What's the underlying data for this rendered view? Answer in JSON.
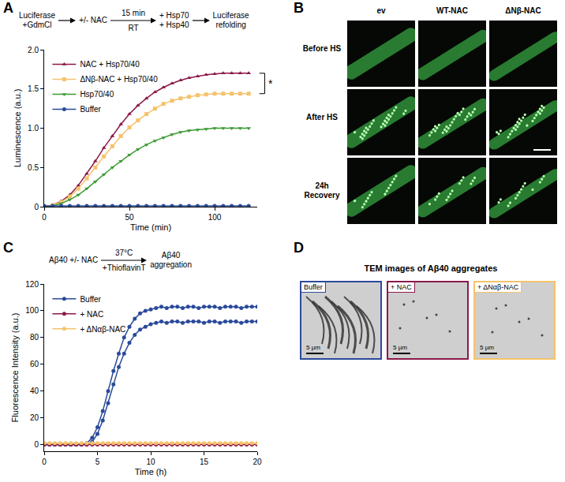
{
  "chart_data": [
    {
      "panel_label": "A",
      "type": "line",
      "scheme": {
        "nodes": [
          [
            "Luciferase",
            "+GdmCl"
          ],
          [
            "+/- NAC"
          ],
          [
            "+ Hsp70",
            "+ Hsp40"
          ],
          [
            "Luciferase",
            "refolding"
          ]
        ],
        "arrows": [
          null,
          {
            "above": "15 min",
            "below": "RT"
          },
          null
        ]
      },
      "x_label": "Time (min)",
      "y_label": "Luminescence (a.u.)",
      "x": [
        0,
        5,
        10,
        15,
        20,
        25,
        30,
        35,
        40,
        45,
        50,
        55,
        60,
        65,
        70,
        75,
        80,
        85,
        90,
        95,
        100,
        105,
        110,
        115,
        120
      ],
      "series": [
        {
          "name": "NAC + Hsp70/40",
          "color": "#8b1a4a",
          "marker": "triangle-up",
          "values": [
            0,
            0.02,
            0.07,
            0.15,
            0.27,
            0.42,
            0.58,
            0.75,
            0.9,
            1.05,
            1.18,
            1.29,
            1.38,
            1.46,
            1.52,
            1.57,
            1.61,
            1.64,
            1.66,
            1.68,
            1.69,
            1.7,
            1.7,
            1.7,
            1.7
          ]
        },
        {
          "name": "ΔNβ-NAC + Hsp70/40",
          "color": "#f5c26b",
          "marker": "square",
          "values": [
            0,
            0.02,
            0.06,
            0.13,
            0.23,
            0.36,
            0.5,
            0.64,
            0.77,
            0.9,
            1.01,
            1.1,
            1.18,
            1.25,
            1.31,
            1.35,
            1.38,
            1.4,
            1.42,
            1.43,
            1.44,
            1.44,
            1.44,
            1.44,
            1.44
          ]
        },
        {
          "name": "Hsp70/40",
          "color": "#3d9b35",
          "marker": "triangle-down",
          "values": [
            0,
            0.01,
            0.04,
            0.09,
            0.15,
            0.23,
            0.32,
            0.41,
            0.5,
            0.58,
            0.66,
            0.73,
            0.79,
            0.84,
            0.88,
            0.92,
            0.95,
            0.97,
            0.98,
            0.99,
            1.0,
            1.0,
            1.0,
            1.0,
            1.0
          ]
        },
        {
          "name": "Buffer",
          "color": "#2b4a9b",
          "marker": "circle",
          "values": [
            0.01,
            0.01,
            0.01,
            0.01,
            0.01,
            0.01,
            0.01,
            0.01,
            0.01,
            0.01,
            0.01,
            0.01,
            0.01,
            0.01,
            0.01,
            0.01,
            0.01,
            0.01,
            0.01,
            0.01,
            0.01,
            0.01,
            0.01,
            0.01,
            0.01
          ]
        }
      ],
      "xlim": [
        0,
        125
      ],
      "xticks": [
        0,
        50,
        100
      ],
      "ylim": [
        0,
        2.0
      ],
      "yticks": [
        0,
        0.5,
        {
          "value": 1,
          "label": "1.0"
        },
        1.5,
        {
          "value": 2,
          "label": "2.0"
        }
      ],
      "grid": false,
      "legend": "top-left",
      "annotations": [
        {
          "text": "*"
        }
      ]
    },
    {
      "panel_label": "C",
      "type": "line",
      "scheme": {
        "nodes": [
          [
            "Aβ40 +/- NAC"
          ],
          [
            "Aβ40",
            "aggregation"
          ]
        ],
        "arrows": [
          {
            "above": "37°C",
            "below": "+ThioflavinT"
          }
        ]
      },
      "x_label": "Time (h)",
      "y_label": "Fluorescence Intensity (a.u.)",
      "x": [
        0,
        0.5,
        1,
        1.5,
        2,
        2.5,
        3,
        3.5,
        4,
        4.5,
        5,
        5.5,
        6,
        6.5,
        7,
        7.5,
        8,
        8.5,
        9,
        9.5,
        10,
        10.5,
        11,
        11.5,
        12,
        12.5,
        13,
        13.5,
        14,
        14.5,
        15,
        15.5,
        16,
        16.5,
        17,
        17.5,
        18,
        18.5,
        19,
        19.5,
        20
      ],
      "series": [
        {
          "name": "Buffer",
          "color": "#2b4a9b",
          "marker": "circle",
          "values": [
            0,
            0,
            0,
            0,
            0,
            0,
            0,
            0,
            1,
            5,
            13,
            25,
            40,
            55,
            68,
            80,
            88,
            94,
            98,
            100,
            101,
            102,
            103,
            102,
            103,
            103,
            102,
            103,
            103,
            102,
            103,
            103,
            103,
            102,
            103,
            103,
            103,
            102,
            103,
            103,
            103
          ]
        },
        {
          "name": "Buffer",
          "color": "#2b4a9b",
          "marker": "circle",
          "values": [
            0,
            0,
            0,
            0,
            0,
            0,
            0,
            0,
            0,
            2,
            8,
            18,
            31,
            45,
            58,
            68,
            76,
            82,
            86,
            88,
            90,
            91,
            92,
            91,
            92,
            92,
            91,
            92,
            92,
            92,
            91,
            92,
            92,
            91,
            92,
            92,
            92,
            91,
            92,
            92,
            92
          ]
        },
        {
          "name": "+ NAC",
          "color": "#8b1a4a",
          "marker": "circle",
          "values": [
            0,
            0,
            0,
            0,
            0,
            0,
            0,
            0,
            0,
            0,
            0,
            0,
            0,
            0,
            0,
            0,
            0,
            0,
            0,
            0,
            0,
            0,
            0,
            0,
            0,
            0,
            0,
            0,
            0,
            0,
            0,
            0,
            0,
            0,
            0,
            0,
            0,
            0,
            0,
            0,
            0
          ]
        },
        {
          "name": "+ ΔNαβ-NAC",
          "color": "#f5c26b",
          "marker": "circle",
          "values": [
            1,
            1,
            1,
            1,
            1,
            1,
            1,
            1,
            1,
            1,
            1,
            1,
            1,
            1,
            1,
            1,
            1,
            1,
            1,
            1,
            1,
            1,
            1,
            1,
            1,
            1,
            1,
            1,
            1,
            1,
            1,
            1,
            1,
            1,
            1,
            1,
            1,
            1,
            1,
            1,
            1
          ]
        }
      ],
      "xlim": [
        0,
        20
      ],
      "xticks": [
        0,
        5,
        10,
        15,
        20
      ],
      "ylim": [
        -5,
        120
      ],
      "yticks": [
        0,
        20,
        40,
        60,
        80,
        100,
        120
      ],
      "grid": false,
      "legend": "top-left"
    }
  ],
  "image_panels": {
    "B": {
      "panel_label": "B",
      "columns": [
        "ev",
        "WT-NAC",
        "ΔNβ-NAC"
      ],
      "rows": [
        "Before HS",
        "After HS",
        "24h Recovery"
      ]
    },
    "D": {
      "panel_label": "D",
      "title": "TEM images of Aβ40 aggregates",
      "images": [
        {
          "label": "Buffer",
          "color": "#2b4a9b",
          "scale_bar": "5 µm"
        },
        {
          "label": "+ NAC",
          "color": "#8b1a4a",
          "scale_bar": "5 µm"
        },
        {
          "label": "+ ΔNαβ-NAC",
          "color": "#f5c26b",
          "scale_bar": "5 µm"
        }
      ]
    }
  }
}
